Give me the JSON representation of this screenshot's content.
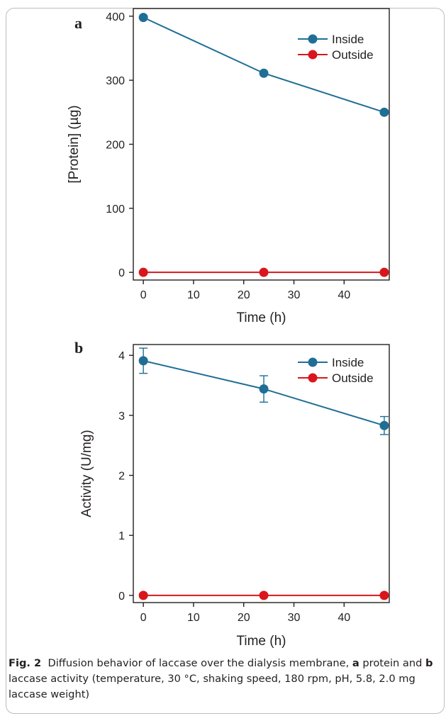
{
  "figure": {
    "caption": {
      "label": "Fig. 2",
      "text_1": "Diffusion behavior of laccase over the dialysis membrane,",
      "a_tag": "a",
      "text_2": "protein and",
      "b_tag": "b",
      "text_3": "laccase activity (temperature, 30 °C, shaking speed, 180 rpm, pH, 5.8, 2.0 mg laccase weight)"
    }
  },
  "colors": {
    "inside": "#1f6e96",
    "outside": "#d9161c",
    "axis": "#231f20"
  },
  "chart_data": [
    {
      "type": "line",
      "panel_label": "a",
      "xlabel": "Time (h)",
      "ylabel": "[Protein] (µg)",
      "xlim": [
        -2,
        49
      ],
      "ylim": [
        -12,
        412
      ],
      "xticks": [
        0,
        10,
        20,
        30,
        40
      ],
      "yticks": [
        0,
        100,
        200,
        300,
        400
      ],
      "grid": false,
      "legend": "top-right",
      "x": [
        0,
        24,
        48
      ],
      "series": [
        {
          "name": "Inside",
          "values": [
            398,
            311,
            250
          ]
        },
        {
          "name": "Outside",
          "values": [
            0,
            0,
            0
          ]
        }
      ]
    },
    {
      "type": "line",
      "panel_label": "b",
      "xlabel": "Time (h)",
      "ylabel": "Activity (U/mg)",
      "xlim": [
        -2,
        49
      ],
      "ylim": [
        -0.12,
        4.18
      ],
      "xticks": [
        0,
        10,
        20,
        30,
        40
      ],
      "yticks": [
        0,
        1,
        2,
        3,
        4
      ],
      "grid": false,
      "legend": "top-right",
      "x": [
        0,
        24,
        48
      ],
      "series": [
        {
          "name": "Inside",
          "values": [
            3.91,
            3.44,
            2.83
          ],
          "error": [
            0.21,
            0.22,
            0.15
          ]
        },
        {
          "name": "Outside",
          "values": [
            0,
            0,
            0
          ]
        }
      ]
    }
  ]
}
